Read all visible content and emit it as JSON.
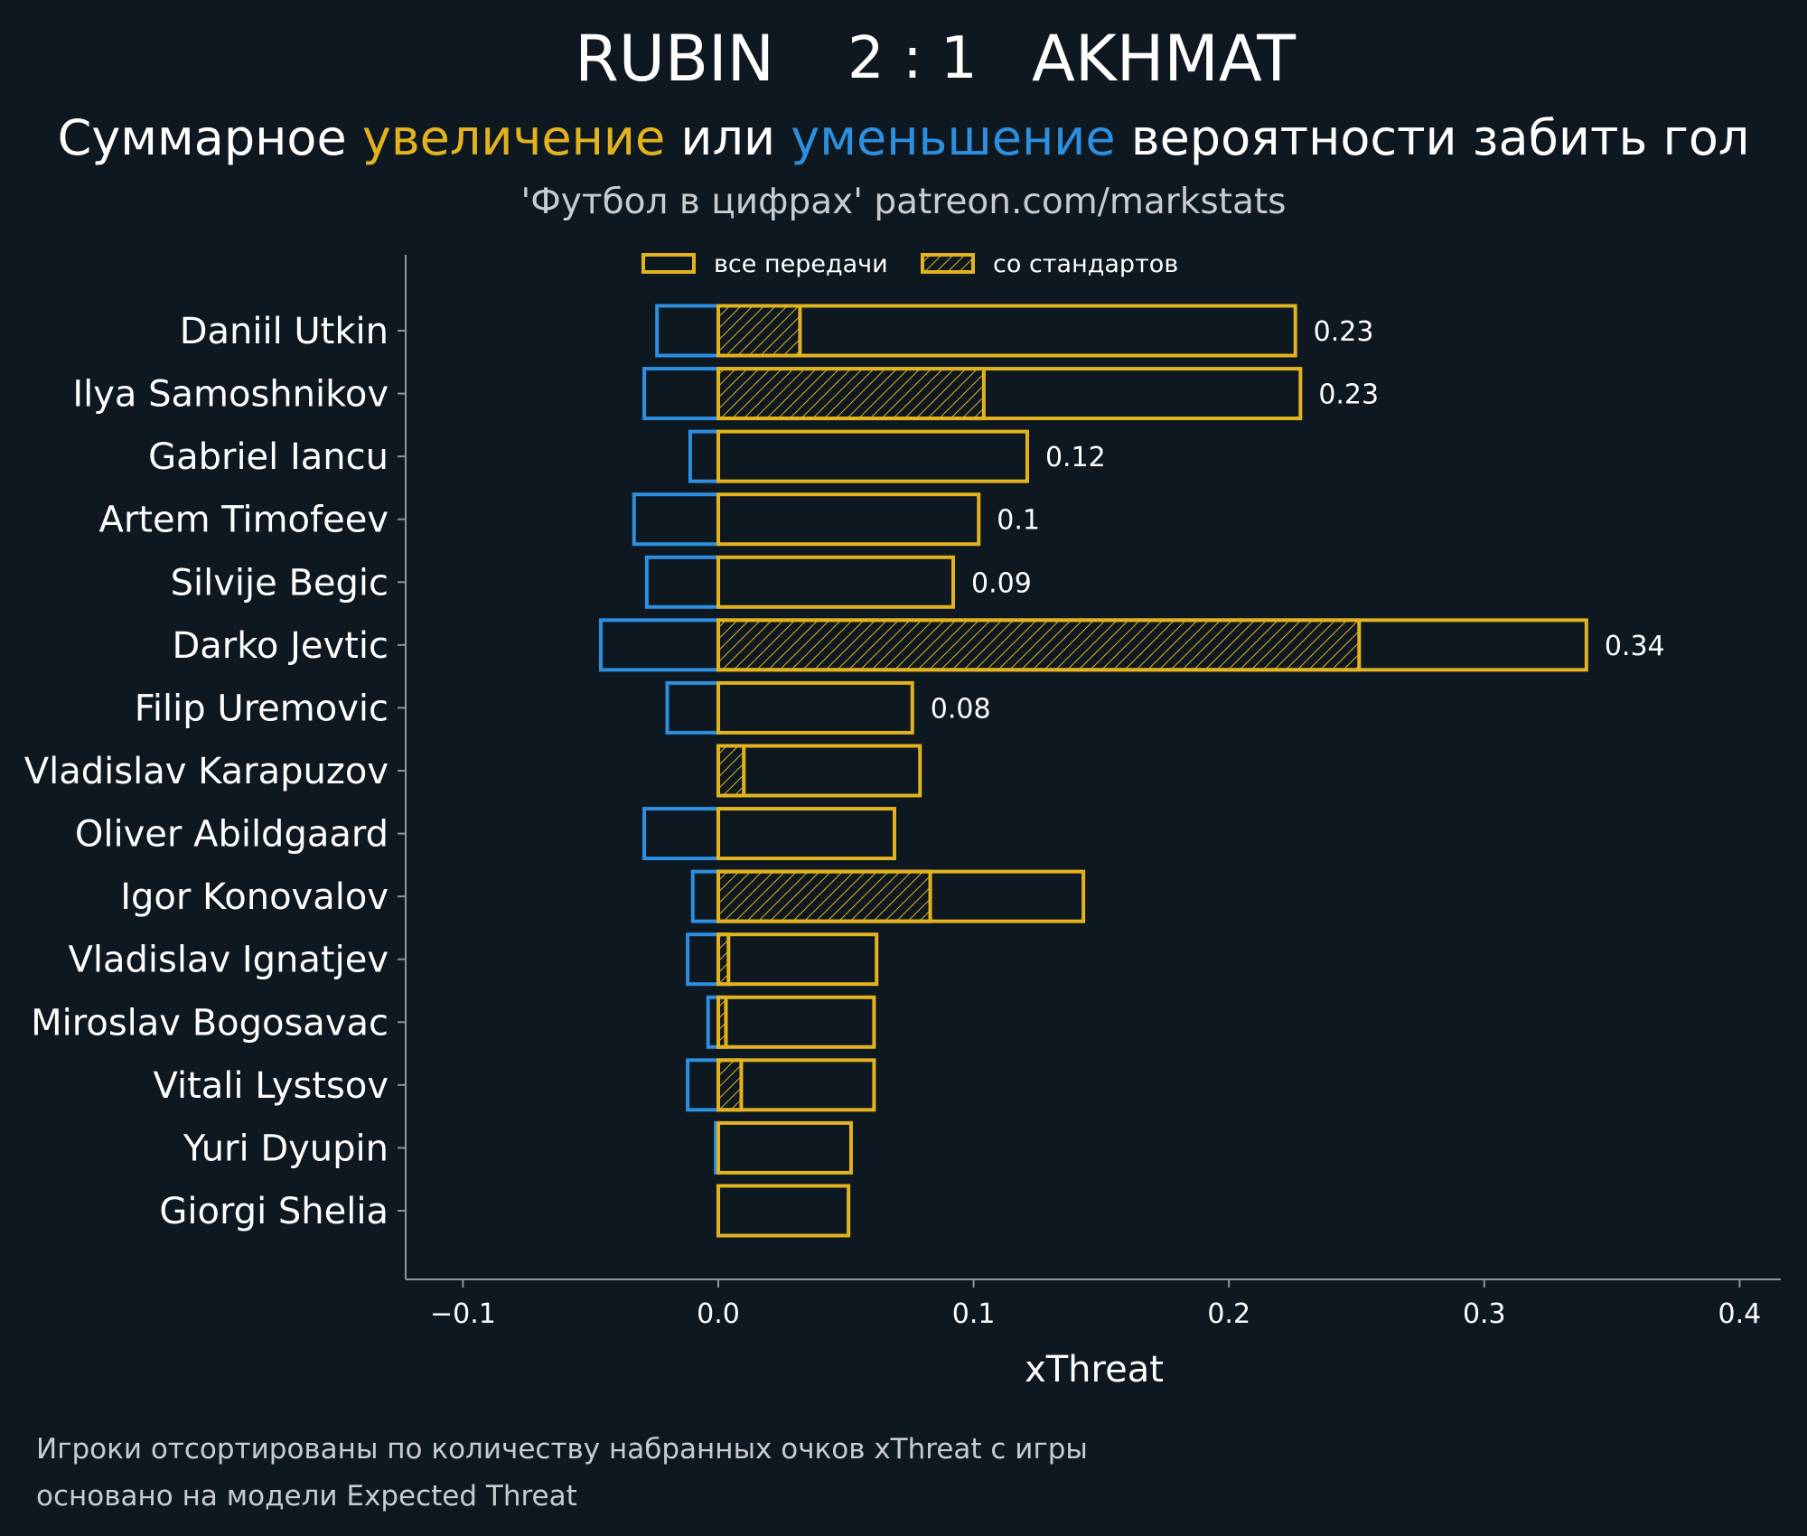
{
  "header": {
    "home_team": "RUBIN",
    "score": "2 : 1",
    "away_team": "AKHMAT",
    "subtitle_pre": "Суммарное ",
    "subtitle_up": "увеличение",
    "subtitle_mid": " или ",
    "subtitle_down": "уменьшение",
    "subtitle_post": " вероятности забить гол",
    "credit": "'Футбол в цифрах' patreon.com/markstats"
  },
  "footnotes": {
    "line1": "Игроки отсортированы по количеству набранных очков xThreat с игры",
    "line2": "основано на модели Expected Threat"
  },
  "colors": {
    "background": "#0e1821",
    "increase": "#e3b31f",
    "decrease": "#2d8fe0",
    "axis": "#8e969c"
  },
  "chart_data": {
    "type": "bar",
    "orientation": "horizontal",
    "xlabel": "xThreat",
    "xlim": [
      -0.123,
      0.415
    ],
    "xticks": [
      -0.1,
      0.0,
      0.1,
      0.2,
      0.3,
      0.4
    ],
    "xtick_labels": [
      "−0.1",
      "0.0",
      "0.1",
      "0.2",
      "0.3",
      "0.4"
    ],
    "legend": {
      "placement": "top-center",
      "items": [
        "все передачи",
        "со стандартов"
      ]
    },
    "categories": [
      "Daniil Utkin",
      "Ilya Samoshnikov",
      "Gabriel Iancu",
      "Artem Timofeev",
      "Silvije Begic",
      "Darko Jevtic",
      "Filip Uremovic",
      "Vladislav Karapuzov",
      "Oliver Abildgaard",
      "Igor Konovalov",
      "Vladislav Ignatjev",
      "Miroslav Bogosavac",
      "Vitali Lystsov",
      "Yuri Dyupin",
      "Giorgi Shelia"
    ],
    "series": [
      {
        "name": "все передачи",
        "values": [
          0.226,
          0.228,
          0.121,
          0.102,
          0.092,
          0.34,
          0.076,
          0.079,
          0.069,
          0.143,
          0.062,
          0.061,
          0.061,
          0.052,
          0.051
        ]
      },
      {
        "name": "со стандартов",
        "values": [
          0.032,
          0.104,
          0,
          0,
          0,
          0.251,
          0,
          0.01,
          0,
          0.083,
          0.004,
          0.003,
          0.009,
          0,
          0
        ]
      },
      {
        "name": "",
        "values": [
          -0.024,
          -0.029,
          -0.011,
          -0.033,
          -0.028,
          -0.046,
          -0.02,
          0,
          -0.029,
          -0.01,
          -0.012,
          -0.004,
          -0.012,
          -0.001,
          0
        ]
      }
    ],
    "value_labels": [
      "0.23",
      "0.23",
      "0.12",
      "0.1",
      "0.09",
      "0.34",
      "0.08",
      "",
      "",
      "",
      "",
      "",
      "",
      "",
      ""
    ]
  }
}
